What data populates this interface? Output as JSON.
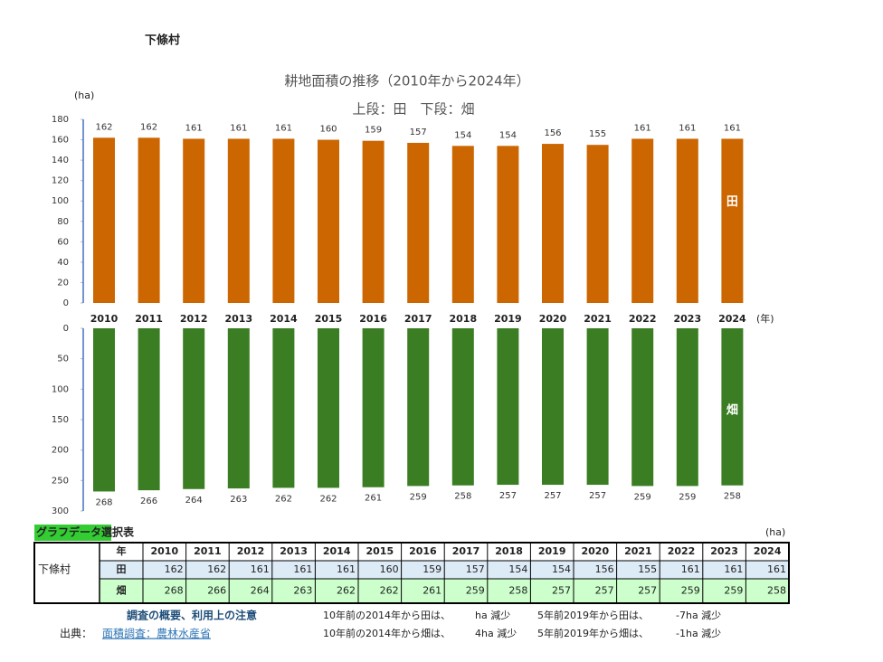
{
  "page_title": "下條村",
  "chart_data": [
    {
      "type": "bar",
      "title": "耕地面積の推移（2010年から2024年）",
      "subtitle": "上段：田　下段：畑",
      "y_label": "(ha)",
      "x_label": "(年)",
      "categories": [
        "2010",
        "2011",
        "2012",
        "2013",
        "2014",
        "2015",
        "2016",
        "2017",
        "2018",
        "2019",
        "2020",
        "2021",
        "2022",
        "2023",
        "2024"
      ],
      "series": [
        {
          "name": "田",
          "color": "#cc6600",
          "values": [
            162,
            162,
            161,
            161,
            161,
            160,
            159,
            157,
            154,
            154,
            156,
            155,
            161,
            161,
            161
          ]
        }
      ],
      "ylim": [
        0,
        180
      ],
      "yticks": [
        0,
        20,
        40,
        60,
        80,
        100,
        120,
        140,
        160,
        180
      ]
    },
    {
      "type": "bar",
      "inverted": true,
      "series": [
        {
          "name": "畑",
          "color": "#3a7d22",
          "values": [
            268,
            266,
            264,
            263,
            262,
            262,
            261,
            259,
            258,
            257,
            257,
            257,
            259,
            259,
            258
          ]
        }
      ],
      "ylim": [
        0,
        300
      ],
      "yticks": [
        0,
        50,
        100,
        150,
        200,
        250,
        300
      ]
    }
  ],
  "table": {
    "title": "グラフデータ選択表",
    "unit": "(ha)",
    "header": "年",
    "row_label": "下條村"
  },
  "footer": {
    "link1": "調査の概要、利用上の注意",
    "source_label": "出典：",
    "source": "面積調査：農林水産省",
    "notes": [
      {
        "text": "10年前の2014年から田は、",
        "result": "ha 減少"
      },
      {
        "text": "5年前2019年から田は、",
        "result": "-7ha 減少"
      },
      {
        "text": "10年前の2014年から畑は、",
        "result": "4ha 減少"
      },
      {
        "text": "5年前2019年から畑は、",
        "result": "-1ha 減少"
      }
    ]
  }
}
